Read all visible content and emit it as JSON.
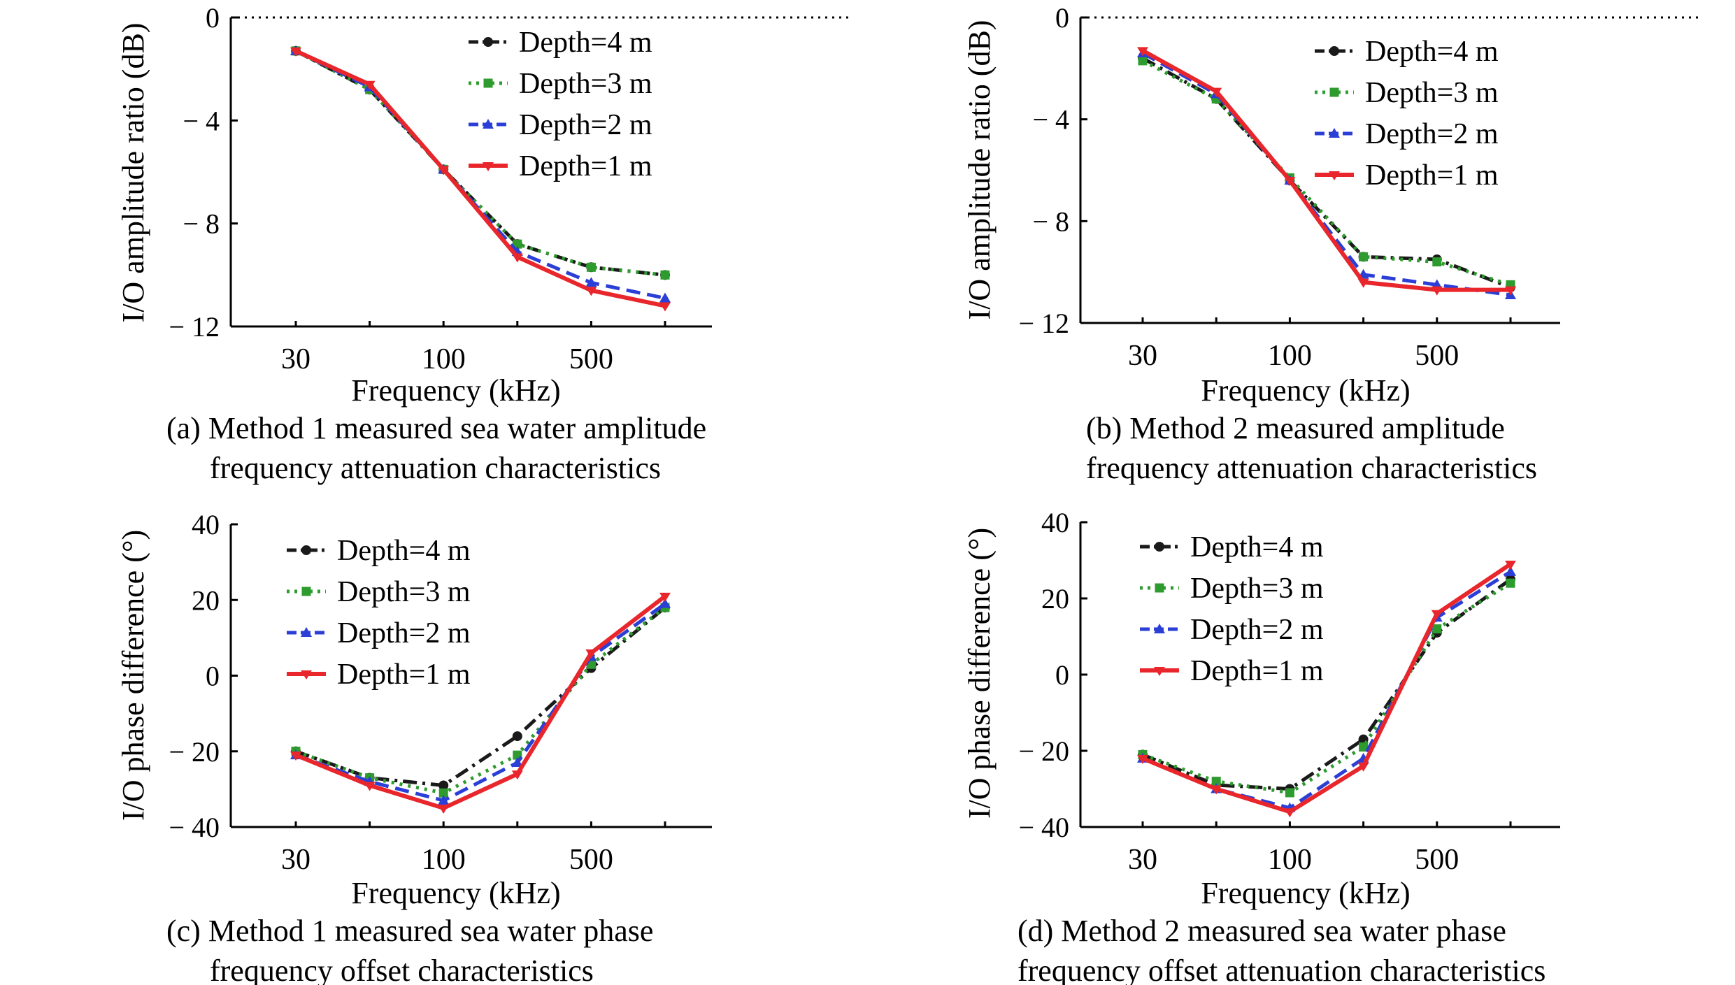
{
  "colors": {
    "depth4": "#1a1a1a",
    "depth3": "#2e9b2e",
    "depth2": "#2b3fd6",
    "depth1": "#e8262b"
  },
  "chart_data": [
    {
      "type": "line",
      "caption": [
        "(a) Method 1 measured sea water amplitude",
        "frequency attenuation characteristics"
      ],
      "xlabel": "Frequency (kHz)",
      "ylabel": "I/O amplitude ratio (dB)",
      "x_tick_labels": [
        "30",
        "100",
        "500"
      ],
      "ylim": [
        -12,
        0
      ],
      "y_ticks": [
        0,
        -4,
        -8,
        -12
      ],
      "y_tick_labels": [
        "0",
        "− 4",
        "− 8",
        "− 12"
      ],
      "x_points": 6,
      "zero_line": true,
      "legend_position": "top-right",
      "series": [
        {
          "name": "Depth=4 m",
          "values": [
            -1.3,
            -2.8,
            -5.9,
            -8.8,
            -9.7,
            -10.0
          ]
        },
        {
          "name": "Depth=3 m",
          "values": [
            -1.3,
            -2.8,
            -5.9,
            -8.8,
            -9.7,
            -10.0
          ]
        },
        {
          "name": "Depth=2 m",
          "values": [
            -1.3,
            -2.7,
            -5.9,
            -9.1,
            -10.3,
            -10.9
          ]
        },
        {
          "name": "Depth=1 m",
          "values": [
            -1.3,
            -2.6,
            -5.9,
            -9.3,
            -10.6,
            -11.2
          ]
        }
      ]
    },
    {
      "type": "line",
      "caption": [
        "(b) Method 2 measured amplitude",
        "frequency attenuation characteristics"
      ],
      "xlabel": "Frequency (kHz)",
      "ylabel": "I/O amplitude ratio (dB)",
      "x_tick_labels": [
        "30",
        "100",
        "500"
      ],
      "ylim": [
        -12,
        0
      ],
      "y_ticks": [
        0,
        -4,
        -8,
        -12
      ],
      "y_tick_labels": [
        "0",
        "− 4",
        "− 8",
        "− 12"
      ],
      "x_points": 6,
      "zero_line": true,
      "legend_position": "top-right",
      "series": [
        {
          "name": "Depth=4 m",
          "values": [
            -1.6,
            -3.2,
            -6.4,
            -9.4,
            -9.5,
            -10.6
          ]
        },
        {
          "name": "Depth=3 m",
          "values": [
            -1.7,
            -3.2,
            -6.3,
            -9.4,
            -9.6,
            -10.5
          ]
        },
        {
          "name": "Depth=2 m",
          "values": [
            -1.4,
            -3.0,
            -6.4,
            -10.1,
            -10.5,
            -10.9
          ]
        },
        {
          "name": "Depth=1 m",
          "values": [
            -1.3,
            -2.9,
            -6.4,
            -10.4,
            -10.7,
            -10.7
          ]
        }
      ]
    },
    {
      "type": "line",
      "caption": [
        "(c) Method 1 measured sea water phase",
        "frequency offset characteristics"
      ],
      "xlabel": "Frequency (kHz)",
      "ylabel": "I/O phase difference (°)",
      "x_tick_labels": [
        "30",
        "100",
        "500"
      ],
      "ylim": [
        -40,
        40
      ],
      "y_ticks": [
        40,
        20,
        0,
        -20,
        -40
      ],
      "y_tick_labels": [
        "40",
        "20",
        "0",
        "− 20",
        "− 40"
      ],
      "x_points": 6,
      "zero_line": false,
      "legend_position": "top-left",
      "series": [
        {
          "name": "Depth=4 m",
          "values": [
            -20,
            -27,
            -29,
            -16,
            2,
            18
          ]
        },
        {
          "name": "Depth=3 m",
          "values": [
            -20,
            -27,
            -31,
            -21,
            3,
            18
          ]
        },
        {
          "name": "Depth=2 m",
          "values": [
            -21,
            -28,
            -33,
            -23,
            5,
            19
          ]
        },
        {
          "name": "Depth=1 m",
          "values": [
            -21,
            -29,
            -35,
            -26,
            6,
            21
          ]
        }
      ]
    },
    {
      "type": "line",
      "caption": [
        "(d) Method 2 measured sea water phase",
        "frequency offset attenuation characteristics"
      ],
      "xlabel": "Frequency (kHz)",
      "ylabel": "I/O phase difference (°)",
      "x_tick_labels": [
        "30",
        "100",
        "500"
      ],
      "ylim": [
        -40,
        40
      ],
      "y_ticks": [
        40,
        20,
        0,
        -20,
        -40
      ],
      "y_tick_labels": [
        "40",
        "20",
        "0",
        "− 20",
        "− 40"
      ],
      "x_points": 6,
      "zero_line": false,
      "legend_position": "top-left",
      "series": [
        {
          "name": "Depth=4 m",
          "values": [
            -21,
            -29,
            -30,
            -17,
            11,
            25
          ]
        },
        {
          "name": "Depth=3 m",
          "values": [
            -21,
            -28,
            -31,
            -19,
            12,
            24
          ]
        },
        {
          "name": "Depth=2 m",
          "values": [
            -22,
            -30,
            -35,
            -22,
            15,
            27
          ]
        },
        {
          "name": "Depth=1 m",
          "values": [
            -22,
            -30,
            -36,
            -24,
            16,
            29
          ]
        }
      ]
    }
  ]
}
